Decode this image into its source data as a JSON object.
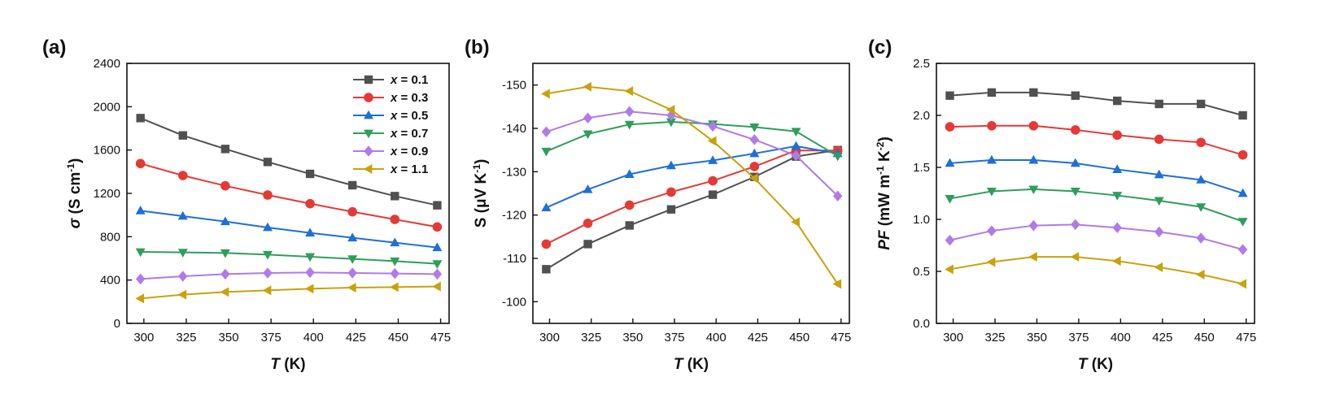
{
  "colors": {
    "x=0.1": "#505050",
    "x=0.3": "#e53935",
    "x=0.5": "#1e6fd9",
    "x=0.7": "#2e9e5b",
    "x=0.9": "#b07ae8",
    "x=1.1": "#c9a20c"
  },
  "chart_data": [
    {
      "panel": "(a)",
      "type": "line",
      "xlabel": {
        "italic": "T",
        "rest": " (K)"
      },
      "ylabel": {
        "italic": "σ",
        "rest": " (S cm",
        "sup": "-1",
        "close": ")"
      },
      "xlim": [
        290,
        480
      ],
      "ylim": [
        0,
        2400
      ],
      "xticks": [
        300,
        325,
        350,
        375,
        400,
        425,
        450,
        475
      ],
      "yticks": [
        0,
        400,
        800,
        1200,
        1600,
        2000,
        2400
      ],
      "ytick_labels": [
        "0",
        "400",
        "800",
        "1200",
        "1600",
        "2000",
        "2400"
      ],
      "legend": {
        "position": "top-right",
        "entries": [
          {
            "italic": "x",
            "rest": " = 0.1"
          },
          {
            "italic": "x",
            "rest": " = 0.3"
          },
          {
            "italic": "x",
            "rest": " = 0.5"
          },
          {
            "italic": "x",
            "rest": " = 0.7"
          },
          {
            "italic": "x",
            "rest": " = 0.9"
          },
          {
            "italic": "x",
            "rest": " = 1.1"
          }
        ]
      },
      "x": [
        298,
        323,
        348,
        373,
        398,
        423,
        448,
        473
      ],
      "series": [
        {
          "name": "x = 0.1",
          "marker": "square",
          "color_key": "x=0.1",
          "values": [
            1895,
            1735,
            1610,
            1490,
            1380,
            1275,
            1175,
            1090
          ]
        },
        {
          "name": "x = 0.3",
          "marker": "circle",
          "color_key": "x=0.3",
          "values": [
            1475,
            1365,
            1270,
            1185,
            1105,
            1030,
            960,
            890
          ]
        },
        {
          "name": "x = 0.5",
          "marker": "triangle-up",
          "color_key": "x=0.5",
          "values": [
            1040,
            990,
            940,
            885,
            835,
            790,
            745,
            700
          ]
        },
        {
          "name": "x = 0.7",
          "marker": "triangle-down",
          "color_key": "x=0.7",
          "values": [
            660,
            655,
            650,
            635,
            615,
            595,
            575,
            550
          ]
        },
        {
          "name": "x = 0.9",
          "marker": "diamond",
          "color_key": "x=0.9",
          "values": [
            410,
            435,
            455,
            465,
            470,
            465,
            460,
            455
          ]
        },
        {
          "name": "x = 1.1",
          "marker": "triangle-left",
          "color_key": "x=1.1",
          "values": [
            230,
            265,
            290,
            305,
            320,
            330,
            335,
            340
          ]
        }
      ]
    },
    {
      "panel": "(b)",
      "type": "line",
      "xlabel": {
        "italic": "T",
        "rest": " (K)"
      },
      "ylabel": {
        "italic": "",
        "rest": "S (μV K",
        "sup": "-1",
        "close": ")"
      },
      "xlim": [
        290,
        480
      ],
      "ylim": [
        -95,
        -155
      ],
      "xticks": [
        300,
        325,
        350,
        375,
        400,
        425,
        450,
        475
      ],
      "yticks": [
        -100,
        -110,
        -120,
        -130,
        -140,
        -150
      ],
      "ytick_labels": [
        "-100",
        "-110",
        "-120",
        "-130",
        "-140",
        "-150"
      ],
      "x": [
        298,
        323,
        348,
        373,
        398,
        423,
        448,
        473
      ],
      "series": [
        {
          "name": "x = 0.1",
          "marker": "square",
          "color_key": "x=0.1",
          "values": [
            -107.5,
            -113.3,
            -117.6,
            -121.3,
            -124.7,
            -128.8,
            -133.5,
            -135.0
          ]
        },
        {
          "name": "x = 0.3",
          "marker": "circle",
          "color_key": "x=0.3",
          "values": [
            -113.3,
            -118.1,
            -122.3,
            -125.3,
            -127.9,
            -131.2,
            -134.9,
            -134.9
          ]
        },
        {
          "name": "x = 0.5",
          "marker": "triangle-up",
          "color_key": "x=0.5",
          "values": [
            -121.7,
            -125.9,
            -129.4,
            -131.4,
            -132.6,
            -134.2,
            -135.9,
            -134.2
          ]
        },
        {
          "name": "x = 0.7",
          "marker": "triangle-down",
          "color_key": "x=0.7",
          "values": [
            -134.7,
            -138.7,
            -140.9,
            -141.5,
            -141.0,
            -140.3,
            -139.3,
            -133.6
          ]
        },
        {
          "name": "x = 0.9",
          "marker": "diamond",
          "color_key": "x=0.9",
          "values": [
            -139.2,
            -142.4,
            -143.9,
            -143.0,
            -140.5,
            -137.4,
            -133.7,
            -124.4
          ]
        },
        {
          "name": "x = 1.1",
          "marker": "triangle-left",
          "color_key": "x=1.1",
          "values": [
            -148.0,
            -149.6,
            -148.6,
            -144.3,
            -137.1,
            -128.5,
            -118.4,
            -104.1
          ]
        }
      ]
    },
    {
      "panel": "(c)",
      "type": "line",
      "xlabel": {
        "italic": "T",
        "rest": " (K)"
      },
      "ylabel": {
        "italic": "PF",
        "rest": " (mW m",
        "sup": "-1",
        "mid": " K",
        "sup2": "-2",
        "close": ")"
      },
      "xlim": [
        290,
        480
      ],
      "ylim": [
        0,
        2.5
      ],
      "xticks": [
        300,
        325,
        350,
        375,
        400,
        425,
        450,
        475
      ],
      "yticks": [
        0,
        0.5,
        1.0,
        1.5,
        2.0,
        2.5
      ],
      "ytick_labels": [
        "0.0",
        "0.5",
        "1.0",
        "1.5",
        "2.0",
        "2.5"
      ],
      "x": [
        298,
        323,
        348,
        373,
        398,
        423,
        448,
        473
      ],
      "series": [
        {
          "name": "x = 0.1",
          "marker": "square",
          "color_key": "x=0.1",
          "values": [
            2.19,
            2.22,
            2.22,
            2.19,
            2.14,
            2.11,
            2.11,
            2.0
          ]
        },
        {
          "name": "x = 0.3",
          "marker": "circle",
          "color_key": "x=0.3",
          "values": [
            1.89,
            1.9,
            1.9,
            1.86,
            1.81,
            1.77,
            1.74,
            1.62
          ]
        },
        {
          "name": "x = 0.5",
          "marker": "triangle-up",
          "color_key": "x=0.5",
          "values": [
            1.54,
            1.57,
            1.57,
            1.54,
            1.48,
            1.43,
            1.38,
            1.25
          ]
        },
        {
          "name": "x = 0.7",
          "marker": "triangle-down",
          "color_key": "x=0.7",
          "values": [
            1.2,
            1.27,
            1.29,
            1.27,
            1.23,
            1.18,
            1.12,
            0.98
          ]
        },
        {
          "name": "x = 0.9",
          "marker": "diamond",
          "color_key": "x=0.9",
          "values": [
            0.8,
            0.89,
            0.94,
            0.95,
            0.92,
            0.88,
            0.82,
            0.71
          ]
        },
        {
          "name": "x = 1.1",
          "marker": "triangle-left",
          "color_key": "x=1.1",
          "values": [
            0.52,
            0.59,
            0.64,
            0.64,
            0.6,
            0.54,
            0.47,
            0.38
          ]
        }
      ]
    }
  ]
}
